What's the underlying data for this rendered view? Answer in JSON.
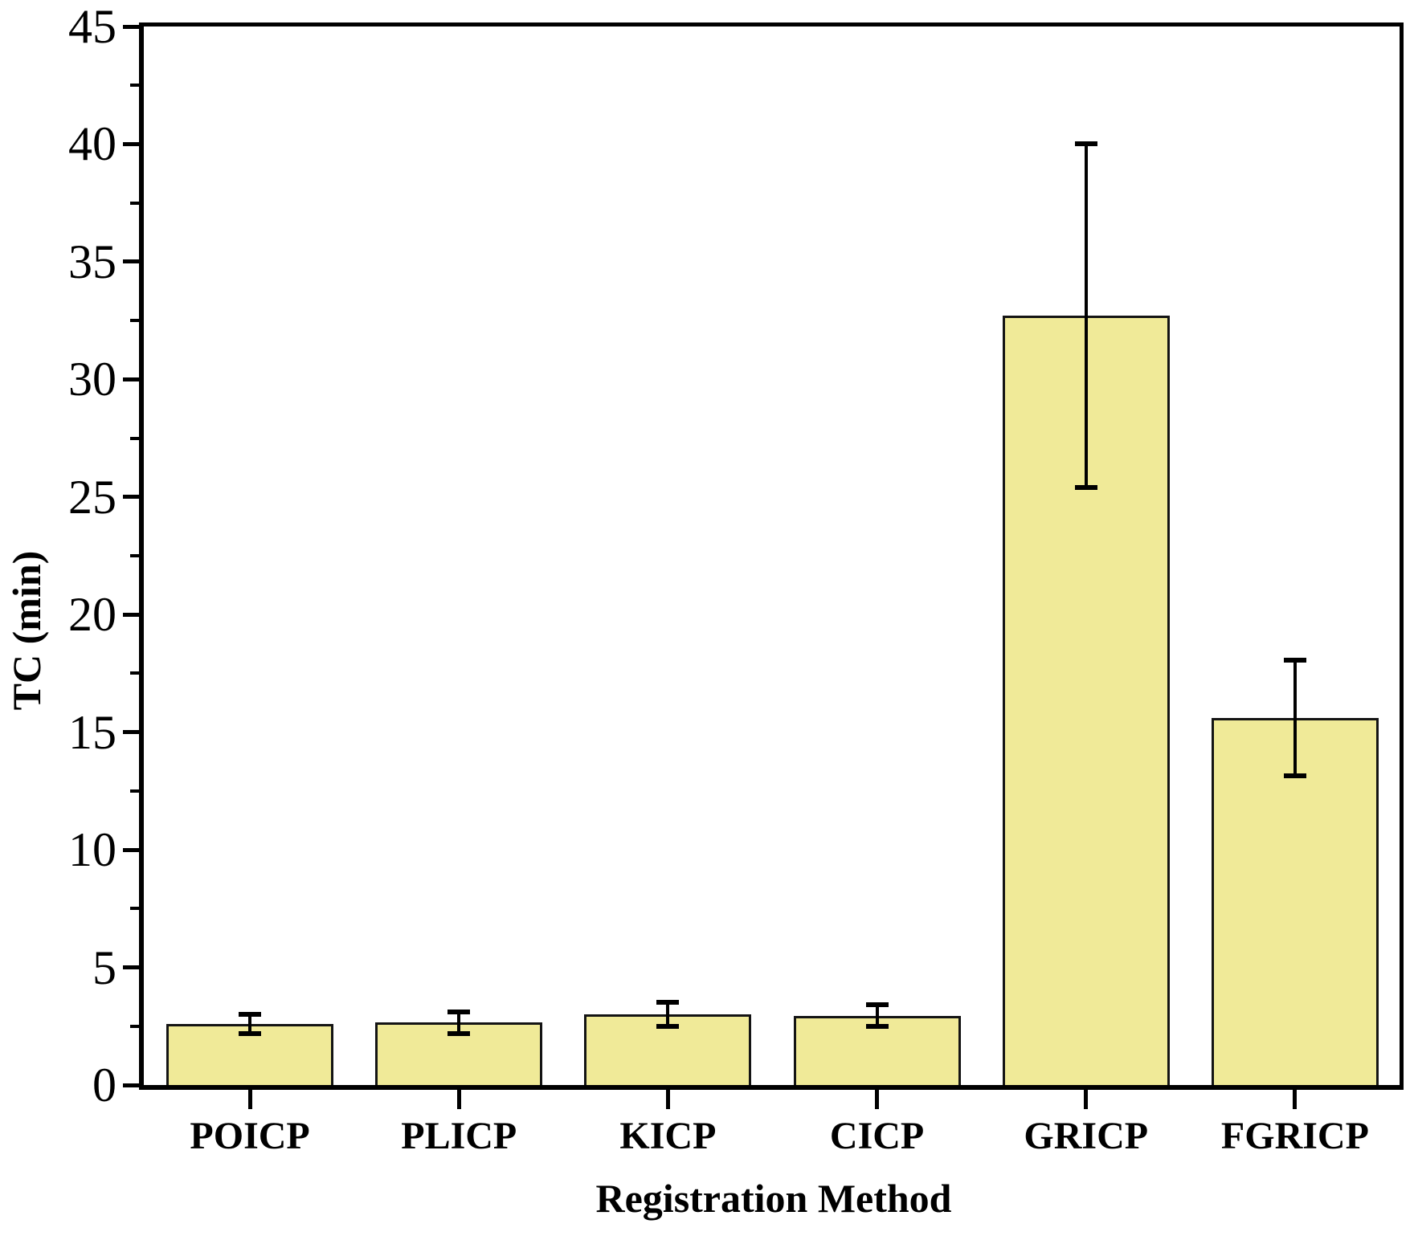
{
  "chart_data": {
    "type": "bar",
    "title": "",
    "xlabel": "Registration Method",
    "ylabel": "TC (min)",
    "categories": [
      "POICP",
      "PLICP",
      "KICP",
      "CICP",
      "GRICP",
      "FGRICP"
    ],
    "series": [
      {
        "name": "TC",
        "values": [
          2.6,
          2.65,
          3.0,
          2.95,
          32.7,
          15.6
        ],
        "error_bars": [
          0.42,
          0.45,
          0.5,
          0.45,
          7.3,
          2.45
        ]
      }
    ],
    "ylim": [
      0,
      45
    ],
    "y_major_tick_step": 5,
    "y_minor_tick_step": 2.5,
    "y_tick_labels": [
      "0",
      "5",
      "10",
      "15",
      "20",
      "25",
      "30",
      "35",
      "40",
      "45"
    ],
    "grid": "off",
    "legend": "none",
    "frame": "full-box",
    "bar_fill_color": "#F0EA98",
    "bar_edge_color": "#141414",
    "error_bar_color": "#000000",
    "axis_color": "#000000",
    "text_color": "#000000",
    "background_color": "#FFFFFF"
  }
}
